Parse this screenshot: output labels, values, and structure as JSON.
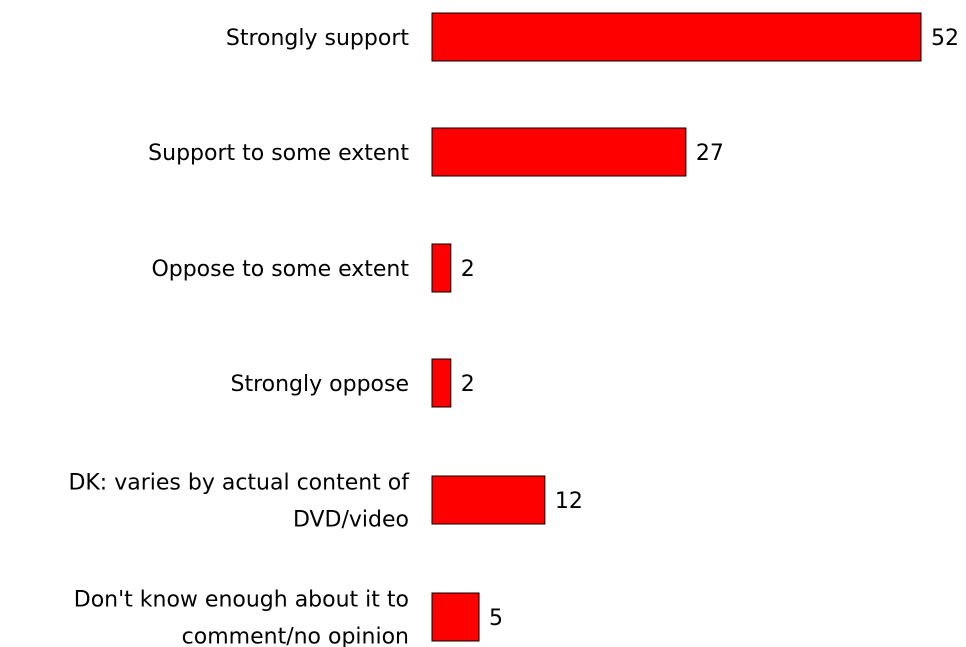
{
  "chart_data": {
    "type": "bar",
    "orientation": "horizontal",
    "categories": [
      "Strongly support",
      "Support to some extent",
      "Oppose to some extent",
      "Strongly oppose",
      "DK: varies by actual content of DVD/video",
      "Don't know enough about it to comment/no opinion"
    ],
    "values": [
      52,
      27,
      2,
      2,
      12,
      5
    ],
    "title": "",
    "xlabel": "",
    "ylabel": "",
    "xlim": [
      0,
      52
    ],
    "grid": false,
    "legend": "none",
    "bar_color": "#ff0000",
    "bar_edge_color": "#000000",
    "data_labels": true
  }
}
